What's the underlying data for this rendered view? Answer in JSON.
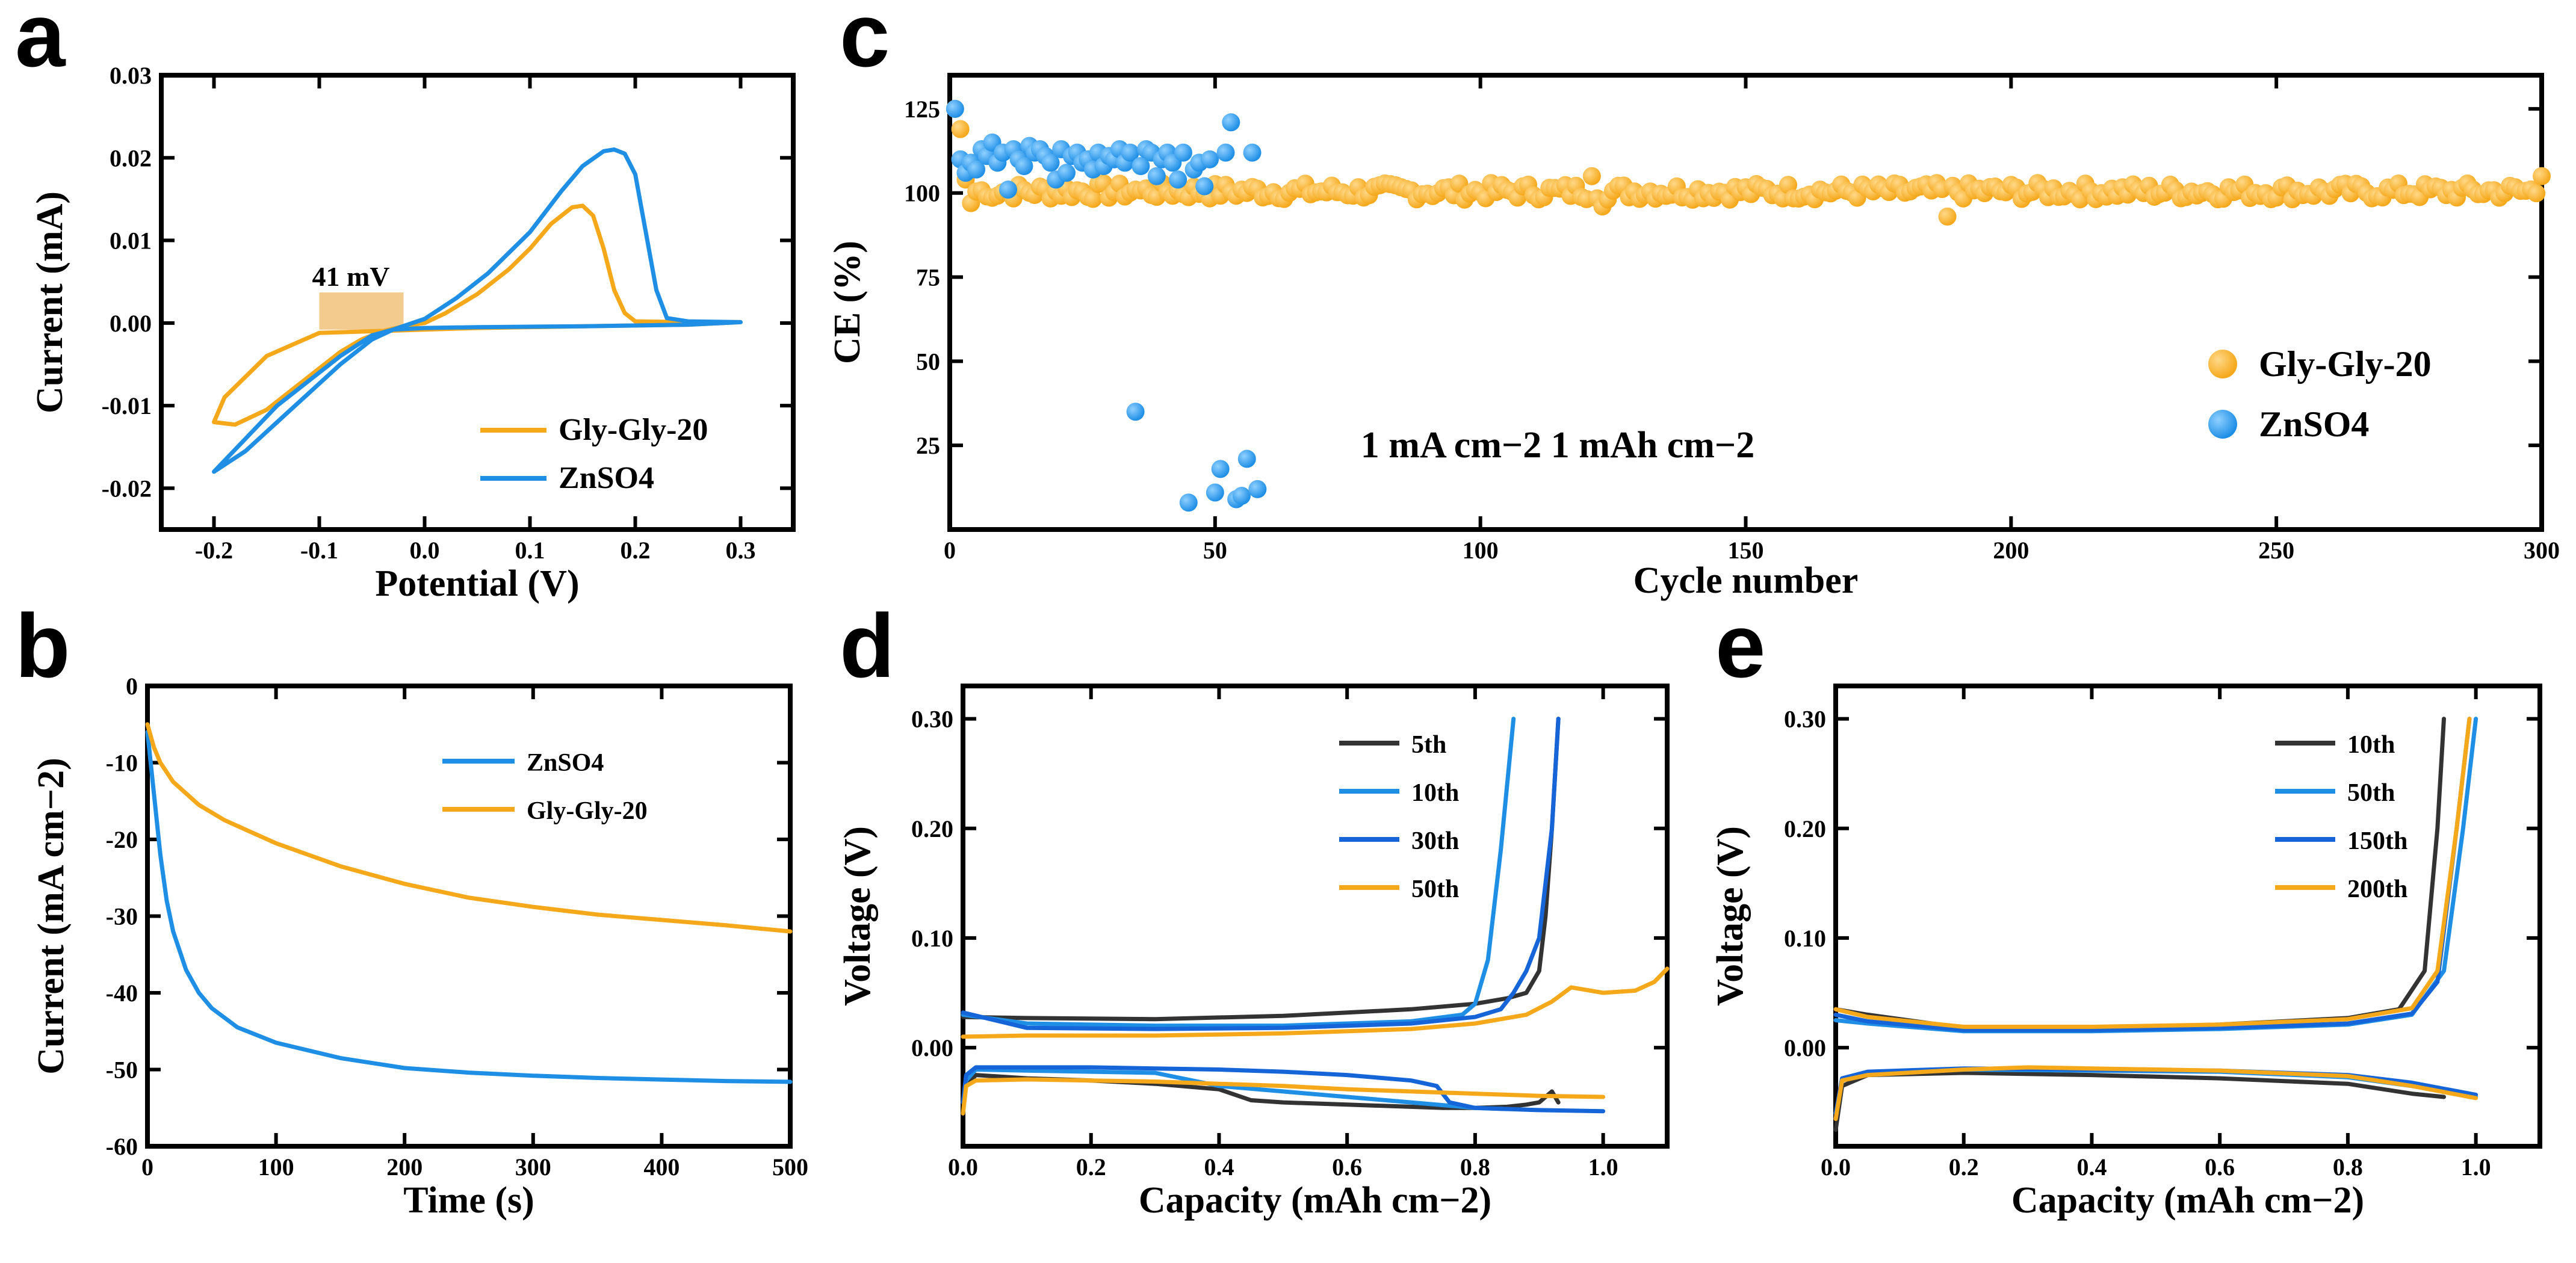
{
  "colors": {
    "blue": "#1f8fe6",
    "orange": "#f5a81a",
    "dark": "#333333",
    "blue2": "#1565d8",
    "band": "#f2c27a"
  },
  "chart_data": [
    {
      "panel": "a",
      "type": "line",
      "xlabel": "Potential (V)",
      "ylabel": "Current (mA)",
      "xlim": [
        -0.25,
        0.35
      ],
      "ylim": [
        -0.025,
        0.03
      ],
      "xticks": [
        -0.2,
        -0.1,
        0.0,
        0.1,
        0.2,
        0.3
      ],
      "xtick_labels": [
        "-0.2",
        "-0.1",
        "0.0",
        "0.1",
        "0.2",
        "0.3"
      ],
      "yticks": [
        -0.02,
        -0.01,
        0.0,
        0.01,
        0.02,
        0.03
      ],
      "ytick_labels": [
        "-0.02",
        "-0.01",
        "0.00",
        "0.01",
        "0.02",
        "0.03"
      ],
      "annotation": "41 mV",
      "legend_position": "bottom-right",
      "series": [
        {
          "name": "Gly-Gly-20",
          "color": "orange",
          "x": [
            -0.2,
            -0.18,
            -0.15,
            -0.12,
            -0.1,
            -0.08,
            -0.06,
            -0.04,
            -0.02,
            0.0,
            0.02,
            0.05,
            0.08,
            0.1,
            0.12,
            0.14,
            0.15,
            0.16,
            0.17,
            0.18,
            0.19,
            0.2,
            0.25,
            0.3,
            0.25,
            0.15,
            0.05,
            0.0,
            -0.05,
            -0.1,
            -0.15,
            -0.19,
            -0.2
          ],
          "y": [
            -0.012,
            -0.0123,
            -0.0105,
            -0.0075,
            -0.0055,
            -0.0035,
            -0.002,
            -0.001,
            -0.0004,
            0.0,
            0.0012,
            0.0035,
            0.0065,
            0.009,
            0.012,
            0.014,
            0.0142,
            0.013,
            0.009,
            0.004,
            0.0012,
            0.0002,
            0.0001,
            0.0001,
            -0.0002,
            -0.0004,
            -0.0006,
            -0.0008,
            -0.001,
            -0.0012,
            -0.004,
            -0.009,
            -0.012
          ]
        },
        {
          "name": "ZnSO4",
          "color": "blue",
          "x": [
            -0.2,
            -0.17,
            -0.14,
            -0.11,
            -0.08,
            -0.05,
            -0.03,
            0.0,
            0.03,
            0.06,
            0.1,
            0.13,
            0.15,
            0.17,
            0.18,
            0.19,
            0.2,
            0.21,
            0.22,
            0.23,
            0.25,
            0.3,
            0.25,
            0.15,
            0.05,
            0.0,
            -0.03,
            -0.05,
            -0.08,
            -0.11,
            -0.14,
            -0.17,
            -0.2
          ],
          "y": [
            -0.018,
            -0.0155,
            -0.012,
            -0.0085,
            -0.005,
            -0.002,
            -0.0008,
            0.0005,
            0.003,
            0.006,
            0.011,
            0.016,
            0.019,
            0.0208,
            0.021,
            0.0205,
            0.018,
            0.011,
            0.004,
            0.0006,
            0.0002,
            0.0001,
            -0.0002,
            -0.0004,
            -0.0005,
            -0.0006,
            -0.0008,
            -0.0015,
            -0.004,
            -0.007,
            -0.01,
            -0.014,
            -0.018
          ]
        }
      ]
    },
    {
      "panel": "b",
      "type": "line",
      "xlabel": "Time (s)",
      "ylabel": "Current (mA cm−2)",
      "xlim": [
        0,
        500
      ],
      "ylim": [
        -60,
        0
      ],
      "xticks": [
        0,
        100,
        200,
        300,
        400,
        500
      ],
      "xtick_labels": [
        "0",
        "100",
        "200",
        "300",
        "400",
        "500"
      ],
      "yticks": [
        -60,
        -50,
        -40,
        -30,
        -20,
        -10,
        0
      ],
      "ytick_labels": [
        "-60",
        "-50",
        "-40",
        "-30",
        "-20",
        "-10",
        "0"
      ],
      "legend_position": "top-center",
      "series": [
        {
          "name": "ZnSO4",
          "color": "blue",
          "x": [
            0,
            5,
            10,
            15,
            20,
            30,
            40,
            50,
            70,
            100,
            150,
            200,
            250,
            300,
            350,
            400,
            450,
            500
          ],
          "y": [
            -6,
            -14,
            -22,
            -28,
            -32,
            -37,
            -40,
            -42,
            -44.5,
            -46.5,
            -48.5,
            -49.8,
            -50.4,
            -50.8,
            -51.1,
            -51.3,
            -51.5,
            -51.6
          ]
        },
        {
          "name": "Gly-Gly-20",
          "color": "orange",
          "x": [
            0,
            5,
            10,
            20,
            40,
            60,
            80,
            100,
            150,
            200,
            250,
            300,
            350,
            400,
            450,
            500
          ],
          "y": [
            -5,
            -8,
            -10,
            -12.5,
            -15.5,
            -17.5,
            -19,
            -20.5,
            -23.5,
            -25.8,
            -27.6,
            -28.8,
            -29.8,
            -30.5,
            -31.2,
            -32
          ]
        }
      ]
    },
    {
      "panel": "c",
      "type": "scatter",
      "xlabel": "Cycle number",
      "ylabel": "CE (%)",
      "xlim": [
        0,
        300
      ],
      "ylim": [
        0,
        135
      ],
      "xticks": [
        0,
        50,
        100,
        150,
        200,
        250,
        300
      ],
      "xtick_labels": [
        "0",
        "50",
        "100",
        "150",
        "200",
        "250",
        "300"
      ],
      "yticks": [
        25,
        50,
        75,
        100,
        125
      ],
      "ytick_labels": [
        "25",
        "50",
        "75",
        "100",
        "125"
      ],
      "annotation": "1 mA cm−2 1 mAh cm−2",
      "legend_position": "right-middle",
      "series": [
        {
          "name": "Gly-Gly-20",
          "color": "orange",
          "x_range": [
            1,
            300
          ],
          "mean": 100.5,
          "spread": 2.5,
          "outliers": [
            [
              1,
              125
            ],
            [
              2,
              119
            ],
            [
              3,
              104
            ],
            [
              4,
              97
            ],
            [
              7,
              99
            ],
            [
              35,
              101
            ],
            [
              121,
              105
            ],
            [
              123,
              96
            ],
            [
              188,
              93
            ],
            [
              300,
              105
            ]
          ]
        },
        {
          "name": "ZnSO4",
          "color": "blue",
          "x": [
            1,
            2,
            3,
            4,
            5,
            6,
            7,
            8,
            9,
            10,
            11,
            12,
            13,
            14,
            15,
            16,
            17,
            18,
            19,
            20,
            21,
            22,
            23,
            24,
            25,
            26,
            27,
            28,
            29,
            30,
            31,
            32,
            33,
            34,
            35,
            36,
            37,
            38,
            39,
            40,
            41,
            42,
            43,
            44,
            45,
            46,
            47,
            48,
            49,
            50,
            51,
            52,
            53,
            54,
            55,
            56,
            57,
            58
          ],
          "y": [
            125,
            110,
            106,
            109,
            107,
            113,
            111,
            115,
            109,
            112,
            101,
            113,
            110,
            108,
            114,
            112,
            113,
            111,
            109,
            104,
            113,
            106,
            111,
            112,
            109,
            110,
            107,
            112,
            108,
            111,
            110,
            113,
            109,
            112,
            35,
            108,
            113,
            112,
            105,
            110,
            112,
            109,
            104,
            112,
            8,
            107,
            109,
            102,
            110,
            11,
            18,
            112,
            121,
            9,
            10,
            21,
            112,
            12
          ]
        }
      ]
    },
    {
      "panel": "d",
      "type": "line",
      "xlabel": "Capacity (mAh cm−2)",
      "ylabel": "Voltage (V)",
      "xlim": [
        0,
        1.1
      ],
      "ylim": [
        -0.09,
        0.33
      ],
      "xticks": [
        0.0,
        0.2,
        0.4,
        0.6,
        0.8,
        1.0
      ],
      "xtick_labels": [
        "0.0",
        "0.2",
        "0.4",
        "0.6",
        "0.8",
        "1.0"
      ],
      "yticks": [
        0.0,
        0.1,
        0.2,
        0.3
      ],
      "ytick_labels": [
        "0.00",
        "0.10",
        "0.20",
        "0.30"
      ],
      "legend_position": "top-right",
      "series": [
        {
          "name": "5th",
          "color": "dark",
          "x": [
            0.0,
            0.005,
            0.02,
            0.1,
            0.2,
            0.3,
            0.4,
            0.45,
            0.5,
            0.6,
            0.7,
            0.75,
            0.8,
            0.85,
            0.88,
            0.9,
            0.91,
            0.92,
            0.93
          ],
          "y": [
            -0.05,
            -0.035,
            -0.025,
            -0.028,
            -0.03,
            -0.033,
            -0.038,
            -0.048,
            -0.05,
            -0.052,
            -0.054,
            -0.055,
            -0.055,
            -0.054,
            -0.052,
            -0.05,
            -0.045,
            -0.04,
            -0.05
          ],
          "charge_x": [
            0.0,
            0.1,
            0.3,
            0.5,
            0.7,
            0.8,
            0.85,
            0.88,
            0.9,
            0.91,
            0.92,
            0.93
          ],
          "charge_y": [
            0.028,
            0.027,
            0.026,
            0.029,
            0.035,
            0.04,
            0.045,
            0.05,
            0.07,
            0.12,
            0.2,
            0.3
          ]
        },
        {
          "name": "10th",
          "color": "blue",
          "x": [
            0.0,
            0.005,
            0.02,
            0.1,
            0.2,
            0.3,
            0.4,
            0.5,
            0.6,
            0.7,
            0.8,
            0.85
          ],
          "y": [
            -0.05,
            -0.03,
            -0.02,
            -0.021,
            -0.022,
            -0.023,
            -0.035,
            -0.04,
            -0.045,
            -0.05,
            -0.055,
            -0.056
          ],
          "charge_x": [
            0.0,
            0.1,
            0.3,
            0.5,
            0.7,
            0.78,
            0.8,
            0.82,
            0.84,
            0.86
          ],
          "charge_y": [
            0.03,
            0.022,
            0.02,
            0.02,
            0.024,
            0.03,
            0.04,
            0.08,
            0.18,
            0.3
          ]
        },
        {
          "name": "30th",
          "color": "blue2",
          "x": [
            0.0,
            0.005,
            0.02,
            0.1,
            0.2,
            0.3,
            0.4,
            0.5,
            0.6,
            0.7,
            0.74,
            0.76,
            0.8,
            0.9,
            1.0
          ],
          "y": [
            -0.05,
            -0.025,
            -0.018,
            -0.018,
            -0.018,
            -0.019,
            -0.02,
            -0.022,
            -0.025,
            -0.03,
            -0.035,
            -0.05,
            -0.055,
            -0.057,
            -0.058
          ],
          "charge_x": [
            0.0,
            0.1,
            0.3,
            0.5,
            0.7,
            0.8,
            0.84,
            0.86,
            0.88,
            0.9,
            0.92,
            0.93
          ],
          "charge_y": [
            0.032,
            0.018,
            0.017,
            0.018,
            0.022,
            0.028,
            0.035,
            0.05,
            0.07,
            0.1,
            0.2,
            0.3
          ]
        },
        {
          "name": "50th",
          "color": "orange",
          "x": [
            0.0,
            0.005,
            0.02,
            0.1,
            0.2,
            0.3,
            0.4,
            0.5,
            0.6,
            0.7,
            0.8,
            0.9,
            1.0
          ],
          "y": [
            -0.06,
            -0.035,
            -0.03,
            -0.029,
            -0.03,
            -0.031,
            -0.033,
            -0.035,
            -0.038,
            -0.04,
            -0.042,
            -0.044,
            -0.045
          ],
          "charge_x": [
            0.0,
            0.1,
            0.3,
            0.5,
            0.7,
            0.8,
            0.88,
            0.92,
            0.95,
            1.0,
            1.05,
            1.08,
            1.1
          ],
          "charge_y": [
            0.01,
            0.011,
            0.011,
            0.013,
            0.017,
            0.022,
            0.03,
            0.042,
            0.055,
            0.05,
            0.052,
            0.06,
            0.072
          ]
        }
      ]
    },
    {
      "panel": "e",
      "type": "line",
      "xlabel": "Capacity (mAh cm−2)",
      "ylabel": "Voltage (V)",
      "xlim": [
        0,
        1.1
      ],
      "ylim": [
        -0.09,
        0.33
      ],
      "xticks": [
        0.0,
        0.2,
        0.4,
        0.6,
        0.8,
        1.0
      ],
      "xtick_labels": [
        "0.0",
        "0.2",
        "0.4",
        "0.6",
        "0.8",
        "1.0"
      ],
      "yticks": [
        0.0,
        0.1,
        0.2,
        0.3
      ],
      "ytick_labels": [
        "0.00",
        "0.10",
        "0.20",
        "0.30"
      ],
      "legend_position": "top-right",
      "series": [
        {
          "name": "10th",
          "color": "dark",
          "x": [
            0.0,
            0.01,
            0.05,
            0.2,
            0.4,
            0.6,
            0.8,
            0.9,
            0.95
          ],
          "y": [
            -0.075,
            -0.035,
            -0.025,
            -0.023,
            -0.025,
            -0.028,
            -0.033,
            -0.042,
            -0.045
          ],
          "charge_x": [
            0.0,
            0.05,
            0.2,
            0.4,
            0.6,
            0.8,
            0.88,
            0.92,
            0.94,
            0.95
          ],
          "charge_y": [
            0.035,
            0.03,
            0.018,
            0.018,
            0.021,
            0.027,
            0.035,
            0.07,
            0.2,
            0.3
          ]
        },
        {
          "name": "50th",
          "color": "blue",
          "x": [
            0.0,
            0.01,
            0.05,
            0.2,
            0.4,
            0.6,
            0.8,
            0.9,
            1.0
          ],
          "y": [
            -0.06,
            -0.03,
            -0.024,
            -0.02,
            -0.021,
            -0.022,
            -0.027,
            -0.035,
            -0.045
          ],
          "charge_x": [
            0.0,
            0.05,
            0.2,
            0.4,
            0.6,
            0.8,
            0.9,
            0.95,
            0.98,
            1.0
          ],
          "charge_y": [
            0.025,
            0.022,
            0.015,
            0.015,
            0.017,
            0.021,
            0.03,
            0.07,
            0.2,
            0.3
          ]
        },
        {
          "name": "150th",
          "color": "blue2",
          "x": [
            0.0,
            0.01,
            0.05,
            0.2,
            0.4,
            0.6,
            0.8,
            0.9,
            1.0
          ],
          "y": [
            -0.06,
            -0.028,
            -0.022,
            -0.019,
            -0.02,
            -0.021,
            -0.025,
            -0.032,
            -0.043
          ],
          "charge_x": [
            0.0,
            0.05,
            0.2,
            0.4,
            0.6,
            0.8,
            0.9,
            0.94,
            0.97,
            0.99
          ],
          "charge_y": [
            0.03,
            0.024,
            0.016,
            0.016,
            0.018,
            0.022,
            0.031,
            0.06,
            0.2,
            0.3
          ]
        },
        {
          "name": "200th",
          "color": "orange",
          "x": [
            0.0,
            0.01,
            0.05,
            0.2,
            0.3,
            0.4,
            0.6,
            0.8,
            0.9,
            1.0
          ],
          "y": [
            -0.065,
            -0.03,
            -0.025,
            -0.02,
            -0.018,
            -0.019,
            -0.021,
            -0.026,
            -0.035,
            -0.046
          ],
          "charge_x": [
            0.0,
            0.05,
            0.2,
            0.4,
            0.6,
            0.8,
            0.9,
            0.94,
            0.97,
            0.99
          ],
          "charge_y": [
            0.035,
            0.028,
            0.019,
            0.019,
            0.021,
            0.026,
            0.036,
            0.07,
            0.2,
            0.3
          ]
        }
      ]
    }
  ],
  "panels": {
    "a": "a",
    "b": "b",
    "c": "c",
    "d": "d",
    "e": "e"
  }
}
